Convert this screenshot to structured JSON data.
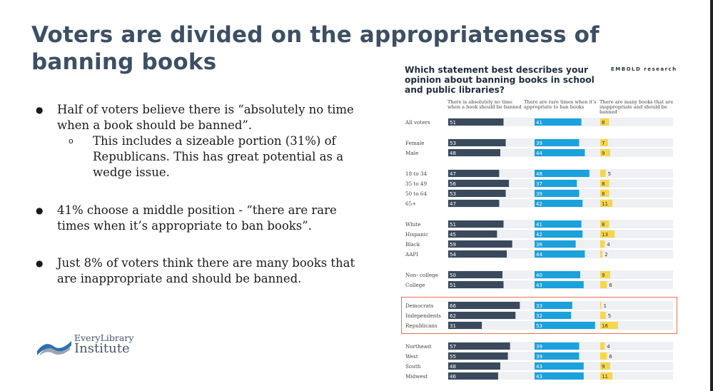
{
  "slide": {
    "title": "Voters are divided on the appropriateness of banning books",
    "bullets": [
      "Half of voters believe there is “absolutely no time when a book should be banned”.",
      "41% choose a middle position - “there are rare times when it’s appropriate to ban books”.",
      "Just 8% of voters think there are many books that are inappropriate and should be banned."
    ],
    "sub_bullet": "This includes a sizeable portion (31%) of Republicans. This has great potential as a wedge issue.",
    "bullet_symbol": "●",
    "sub_bullet_symbol": "o"
  },
  "logo": {
    "line1": "EveryLibrary",
    "line2": "Institute",
    "icon": "book-wave-logo-icon"
  },
  "colors": {
    "dark": "#3a4a5c",
    "blue": "#1ba1dc",
    "yellow": "#f7d64a",
    "track": "#eef0f3",
    "title": "#3d4f63",
    "highlight": "#e8734f"
  },
  "chart_data": {
    "type": "bar",
    "title": "Which statement best describes your opinion about banning books in school and public libraries?",
    "brand": "EMBOLD research",
    "series": [
      {
        "name": "There is absolutely no time when a book should be banned",
        "values": [
          51,
          53,
          48,
          47,
          56,
          53,
          47,
          51,
          45,
          59,
          54,
          50,
          51,
          66,
          62,
          31,
          57,
          55,
          48,
          46
        ]
      },
      {
        "name": "There are rare times when it's appropriate to ban books",
        "values": [
          41,
          39,
          44,
          48,
          37,
          39,
          42,
          41,
          42,
          36,
          44,
          40,
          43,
          33,
          32,
          53,
          39,
          39,
          43,
          43
        ]
      },
      {
        "name": "There are many books that are inappropriate and should be banned",
        "values": [
          8,
          7,
          9,
          5,
          8,
          8,
          11,
          8,
          13,
          4,
          2,
          9,
          6,
          1,
          5,
          16,
          4,
          6,
          9,
          11
        ]
      }
    ],
    "categories": [
      "All voters",
      "Female",
      "Male",
      "18 to 34",
      "35 to 49",
      "50 to 64",
      "65+",
      "White",
      "Hispanic",
      "Black",
      "AAPI",
      "Non- college",
      "College",
      "Democrats",
      "Independents",
      "Republicans",
      "Northeast",
      "West",
      "South",
      "Midwest"
    ],
    "groups": [
      [
        0
      ],
      [
        1,
        2
      ],
      [
        3,
        4,
        5,
        6
      ],
      [
        7,
        8,
        9,
        10
      ],
      [
        11,
        12
      ],
      [
        13,
        14,
        15
      ],
      [
        16,
        17,
        18,
        19
      ]
    ],
    "highlighted_group": 5,
    "xlim": [
      0,
      100
    ]
  }
}
